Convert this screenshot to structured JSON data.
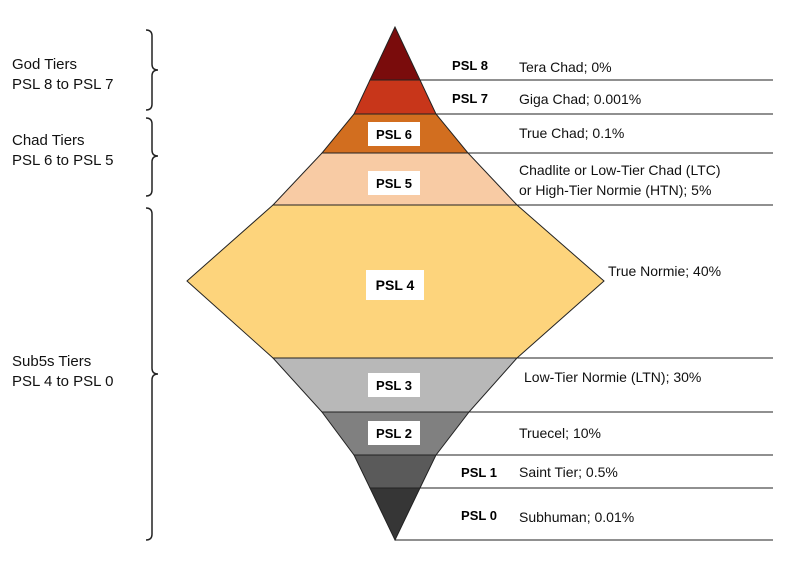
{
  "groups": [
    {
      "title": "God Tiers",
      "range": "PSL 8 to PSL 7"
    },
    {
      "title": "Chad Tiers",
      "range": "PSL 6 to PSL 5"
    },
    {
      "title": "Sub5s Tiers",
      "range": "PSL 4 to PSL 0"
    }
  ],
  "tiers": [
    {
      "level": "PSL 8",
      "label": "Tera Chad; 0%",
      "color": "#7a0c0c"
    },
    {
      "level": "PSL 7",
      "label": "Giga Chad; 0.001%",
      "color": "#c8361a"
    },
    {
      "level": "PSL 6",
      "label": "True Chad; 0.1%",
      "color": "#d26e1f"
    },
    {
      "level": "PSL 5",
      "label_line1": "Chadlite or Low-Tier Chad (LTC)",
      "label_line2": "or High-Tier Normie (HTN); 5%",
      "color": "#f8cba4"
    },
    {
      "level": "PSL 4",
      "label": "True Normie; 40%",
      "color": "#fdd47c"
    },
    {
      "level": "PSL 3",
      "label": "Low-Tier Normie (LTN); 30%",
      "color": "#b8b8b8"
    },
    {
      "level": "PSL 2",
      "label": "Truecel; 10%",
      "color": "#808080"
    },
    {
      "level": "PSL 1",
      "label": "Saint Tier; 0.5%",
      "color": "#5a5a5a"
    },
    {
      "level": "PSL 0",
      "label": "Subhuman; 0.01%",
      "color": "#363636"
    }
  ]
}
